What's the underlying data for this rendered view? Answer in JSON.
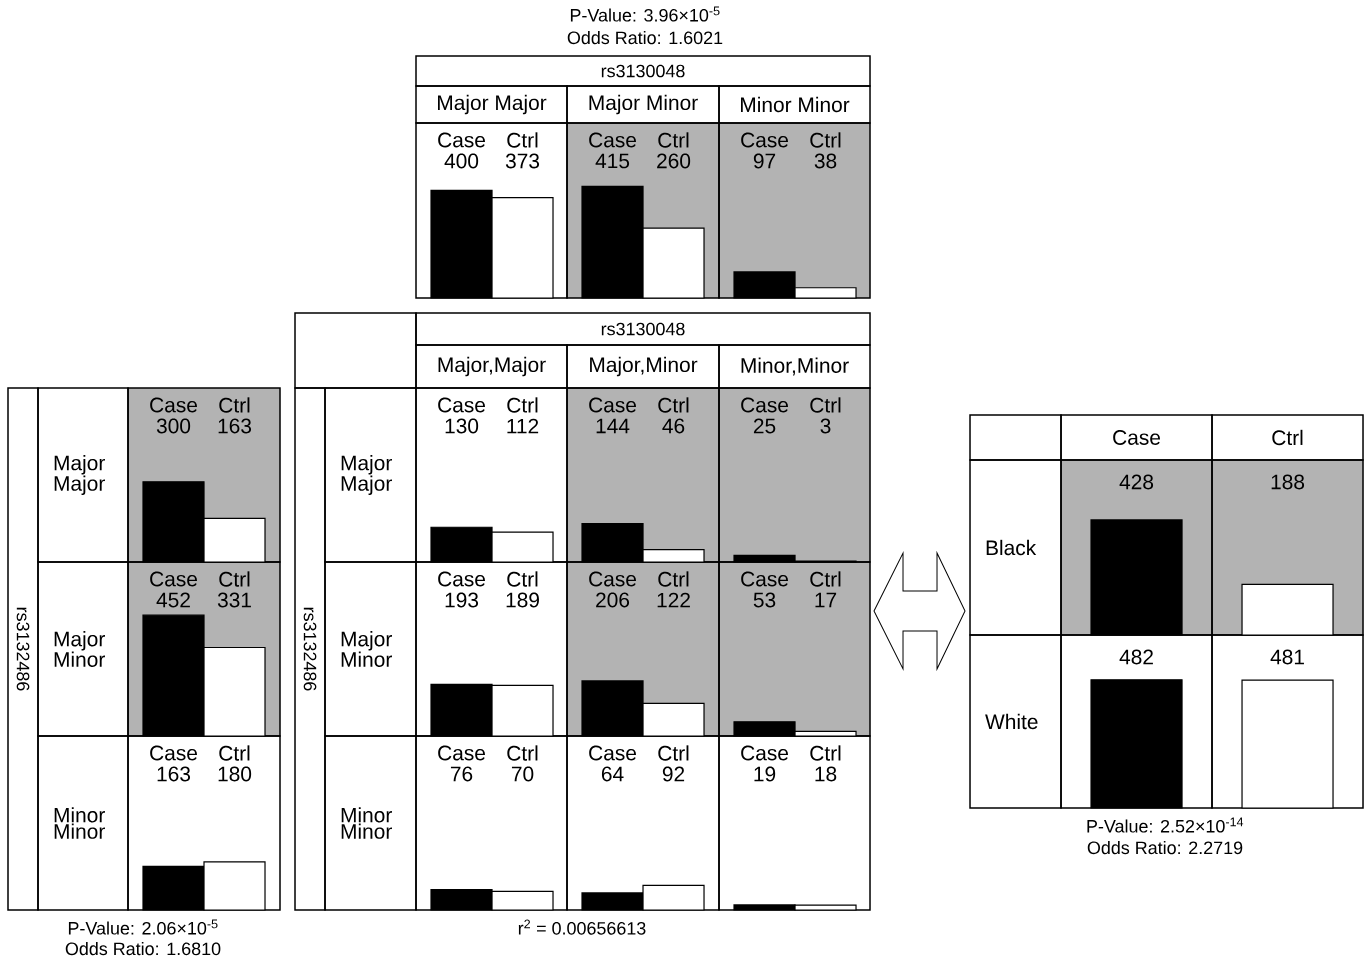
{
  "chart_data": [
    {
      "type": "other",
      "title": "rs3130048",
      "categories": [
        "Major Major",
        "Major Minor",
        "Minor Minor"
      ],
      "annotations": [
        "P-Value: 3.96×10$^{-5}$",
        "Odds Ratio: 1.6021"
      ]
    },
    {
      "type": "bar",
      "categories": [
        "Case",
        "Ctrl"
      ],
      "values": [
        400,
        373
      ],
      "colors": [
        "#000000",
        "#ffffff"
      ],
      "value_labels": [
        "400",
        "373"
      ]
    },
    {
      "type": "bar",
      "categories": [
        "Case",
        "Ctrl"
      ],
      "values": [
        415,
        260
      ],
      "colors": [
        "#000000",
        "#ffffff"
      ],
      "value_labels": [
        "415",
        "260"
      ]
    },
    {
      "type": "bar",
      "categories": [
        "Case",
        "Ctrl"
      ],
      "values": [
        97,
        38
      ],
      "colors": [
        "#000000",
        "#ffffff"
      ],
      "value_labels": [
        "97",
        "38"
      ]
    },
    {
      "type": "other",
      "ylabel": "rs3132486",
      "y_categories": [
        "Major Major",
        "Major Minor",
        "Minor Minor"
      ],
      "annotations": [
        "P-Value: 2.06×10$^{-5}$",
        "Odds Ratio: 1.6810"
      ]
    },
    {
      "type": "bar",
      "categories": [
        "Case",
        "Ctrl"
      ],
      "values": [
        300,
        163
      ],
      "colors": [
        "#000000",
        "#ffffff"
      ],
      "value_labels": [
        "300",
        "163"
      ]
    },
    {
      "type": "bar",
      "categories": [
        "Case",
        "Ctrl"
      ],
      "values": [
        452,
        331
      ],
      "colors": [
        "#000000",
        "#ffffff"
      ],
      "value_labels": [
        "452",
        "331"
      ]
    },
    {
      "type": "bar",
      "categories": [
        "Case",
        "Ctrl"
      ],
      "values": [
        163,
        180
      ],
      "colors": [
        "#000000",
        "#ffffff"
      ],
      "value_labels": [
        "163",
        "180"
      ]
    },
    {
      "type": "other",
      "title": "rs3130048",
      "categories": [
        "Major,Major",
        "Major,Minor",
        "Minor,Minor"
      ],
      "ylabel": "rs3132486",
      "y_categories": [
        "Major Major",
        "Major Minor",
        "Minor Minor"
      ],
      "annotations": [
        "r$^{2}$ = 0.00656613"
      ]
    },
    {
      "type": "bar",
      "categories": [
        "Case",
        "Ctrl"
      ],
      "values": [
        130,
        112
      ],
      "colors": [
        "#000000",
        "#ffffff"
      ],
      "value_labels": [
        "130",
        "112"
      ]
    },
    {
      "type": "bar",
      "categories": [
        "Case",
        "Ctrl"
      ],
      "values": [
        144,
        46
      ],
      "colors": [
        "#000000",
        "#ffffff"
      ],
      "value_labels": [
        "144",
        "46"
      ]
    },
    {
      "type": "bar",
      "categories": [
        "Case",
        "Ctrl"
      ],
      "values": [
        25,
        3
      ],
      "colors": [
        "#000000",
        "#ffffff"
      ],
      "value_labels": [
        "25",
        "3"
      ]
    },
    {
      "type": "bar",
      "categories": [
        "Case",
        "Ctrl"
      ],
      "values": [
        193,
        189
      ],
      "colors": [
        "#000000",
        "#ffffff"
      ],
      "value_labels": [
        "193",
        "189"
      ]
    },
    {
      "type": "bar",
      "categories": [
        "Case",
        "Ctrl"
      ],
      "values": [
        206,
        122
      ],
      "colors": [
        "#000000",
        "#ffffff"
      ],
      "value_labels": [
        "206",
        "122"
      ]
    },
    {
      "type": "bar",
      "categories": [
        "Case",
        "Ctrl"
      ],
      "values": [
        53,
        17
      ],
      "colors": [
        "#000000",
        "#ffffff"
      ],
      "value_labels": [
        "53",
        "17"
      ]
    },
    {
      "type": "bar",
      "categories": [
        "Case",
        "Ctrl"
      ],
      "values": [
        76,
        70
      ],
      "colors": [
        "#000000",
        "#ffffff"
      ],
      "value_labels": [
        "76",
        "70"
      ]
    },
    {
      "type": "bar",
      "categories": [
        "Case",
        "Ctrl"
      ],
      "values": [
        64,
        92
      ],
      "colors": [
        "#000000",
        "#ffffff"
      ],
      "value_labels": [
        "64",
        "92"
      ]
    },
    {
      "type": "bar",
      "categories": [
        "Case",
        "Ctrl"
      ],
      "values": [
        19,
        18
      ],
      "colors": [
        "#000000",
        "#ffffff"
      ],
      "value_labels": [
        "19",
        "18"
      ]
    },
    {
      "type": "other",
      "y_categories": [
        "Black",
        "White"
      ],
      "annotations": [
        "P-Value: 2.52×10$^{-14}$",
        "Odds Ratio: 2.2719"
      ]
    },
    {
      "type": "bar",
      "categories": [
        "Case",
        "Ctrl"
      ],
      "values": [
        428,
        188
      ],
      "colors": [
        "#000000",
        "#ffffff"
      ],
      "value_labels": [
        "428",
        "188"
      ]
    },
    {
      "type": "bar",
      "categories": [
        null,
        null
      ],
      "values": [
        482,
        481
      ],
      "colors": [
        "#000000",
        "#ffffff"
      ],
      "value_labels": [
        "482",
        "481"
      ]
    }
  ]
}
